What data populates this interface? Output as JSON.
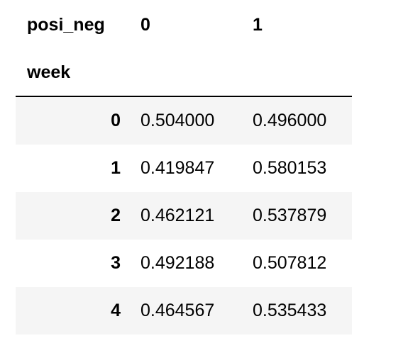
{
  "table": {
    "columns_name": "posi_neg",
    "columns": [
      "0",
      "1"
    ],
    "index_name": "week",
    "index": [
      "0",
      "1",
      "2",
      "3",
      "4"
    ],
    "rows": [
      [
        "0.504000",
        "0.496000"
      ],
      [
        "0.419847",
        "0.580153"
      ],
      [
        "0.462121",
        "0.537879"
      ],
      [
        "0.492188",
        "0.507812"
      ],
      [
        "0.464567",
        "0.535433"
      ]
    ]
  }
}
